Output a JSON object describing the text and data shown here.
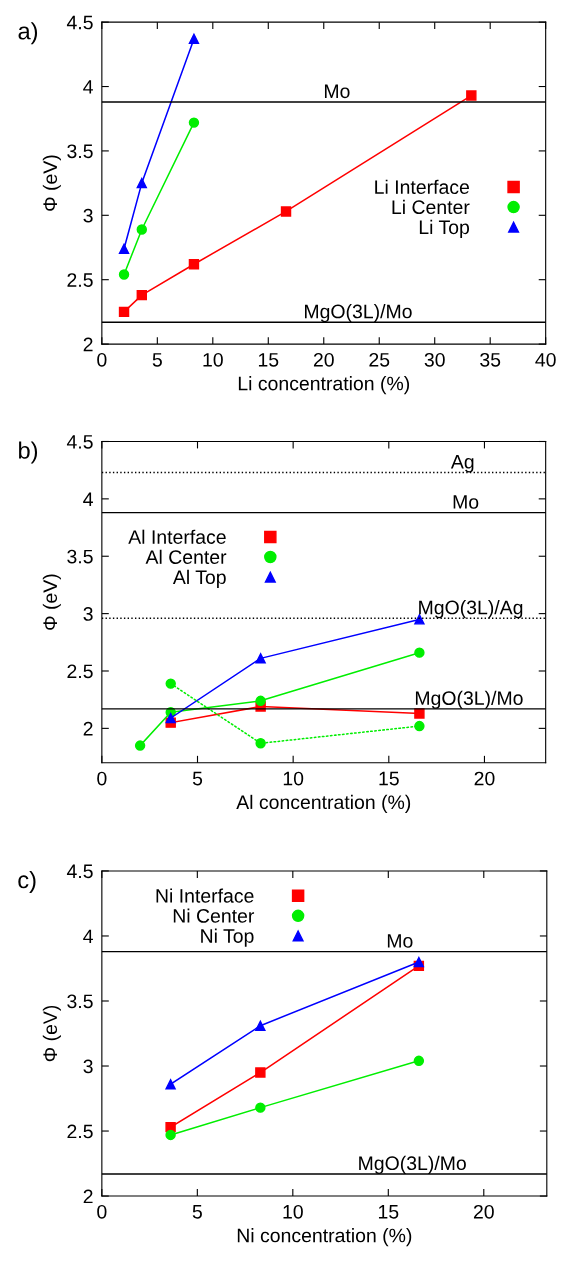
{
  "chart_data": [
    {
      "type": "line",
      "title": "a)",
      "xlabel": "Li concentration (%)",
      "ylabel": "Φ (eV)",
      "xlim": [
        0,
        40
      ],
      "xticks": [
        0,
        5,
        10,
        15,
        20,
        25,
        30,
        35,
        40
      ],
      "ylim": [
        2,
        4.5
      ],
      "yticks": [
        2,
        2.5,
        3,
        3.5,
        4,
        4.5
      ],
      "grid": false,
      "legend": "right",
      "series": [
        {
          "name": "Li Interface",
          "color": "#ff0000",
          "marker": "square",
          "x": [
            2,
            3.6,
            8.3,
            16.6,
            33.3
          ],
          "values": [
            2.25,
            2.38,
            2.62,
            3.03,
            3.93
          ]
        },
        {
          "name": "Li Center",
          "color": "#00ee00",
          "marker": "circle",
          "x": [
            2,
            3.6,
            8.3
          ],
          "values": [
            2.54,
            2.89,
            3.72
          ]
        },
        {
          "name": "Li Top",
          "color": "#0000ff",
          "marker": "triangle",
          "x": [
            2,
            3.6,
            8.3
          ],
          "values": [
            2.74,
            3.25,
            4.37
          ]
        }
      ],
      "ref_lines": [
        {
          "axis": "y",
          "value": 3.88,
          "label": "Mo",
          "color": "#000000",
          "line_style": "solid"
        },
        {
          "axis": "y",
          "value": 2.17,
          "label": "MgO(3L)/Mo",
          "color": "#000000",
          "line_style": "solid"
        }
      ]
    },
    {
      "type": "line",
      "title": "b)",
      "xlabel": "Al concentration (%)",
      "ylabel": "Φ (eV)",
      "xlim": [
        0,
        23.2
      ],
      "xticks": [
        0,
        5,
        10,
        15,
        20
      ],
      "ylim": [
        1.7,
        4.5
      ],
      "yticks": [
        2,
        2.5,
        3,
        3.5,
        4,
        4.5
      ],
      "grid": false,
      "legend": "top left",
      "series": [
        {
          "name": "Al Interface",
          "color": "#ff0000",
          "marker": "square",
          "x": [
            3.6,
            8.3,
            16.6
          ],
          "values": [
            2.05,
            2.19,
            2.13
          ]
        },
        {
          "name": "Al Center",
          "color": "#00ee00",
          "marker": "circle",
          "x": [
            2,
            3.6,
            8.3,
            16.6
          ],
          "values": [
            1.85,
            2.14,
            2.24,
            2.66
          ]
        },
        {
          "name": "Al Top",
          "color": "#0000ff",
          "marker": "triangle",
          "x": [
            3.6,
            8.3,
            16.6
          ],
          "values": [
            2.09,
            2.61,
            2.95
          ]
        },
        {
          "color": "#00ee00",
          "marker": "circle",
          "line_style": "dotted",
          "x": [
            3.6,
            8.3,
            16.6
          ],
          "values": [
            2.39,
            1.87,
            2.02
          ]
        }
      ],
      "ref_lines": [
        {
          "axis": "y",
          "value": 4.23,
          "label": "Ag",
          "color": "#000000",
          "line_style": "dotted"
        },
        {
          "axis": "y",
          "value": 3.88,
          "label": "Mo",
          "color": "#000000",
          "line_style": "solid"
        },
        {
          "axis": "y",
          "value": 2.96,
          "label": "MgO(3L)/Ag",
          "color": "#000000",
          "line_style": "dotted"
        },
        {
          "axis": "y",
          "value": 2.17,
          "label": "MgO(3L)/Mo",
          "color": "#000000",
          "line_style": "solid"
        }
      ]
    },
    {
      "type": "line",
      "title": "c)",
      "xlabel": "Ni concentration (%)",
      "ylabel": "Φ (eV)",
      "xlim": [
        0,
        23.3
      ],
      "xticks": [
        0,
        5,
        10,
        15,
        20
      ],
      "ylim": [
        2,
        4.5
      ],
      "yticks": [
        2,
        2.5,
        3,
        3.5,
        4,
        4.5
      ],
      "grid": false,
      "legend": "top left",
      "series": [
        {
          "name": "Ni Interface",
          "color": "#ff0000",
          "marker": "square",
          "x": [
            3.6,
            8.3,
            16.6
          ],
          "values": [
            2.53,
            2.95,
            3.77
          ]
        },
        {
          "name": "Ni Center",
          "color": "#00ee00",
          "marker": "circle",
          "x": [
            3.6,
            8.3,
            16.6
          ],
          "values": [
            2.47,
            2.68,
            3.04
          ]
        },
        {
          "name": "Ni Top",
          "color": "#0000ff",
          "marker": "triangle",
          "x": [
            3.6,
            8.3,
            16.6
          ],
          "values": [
            2.86,
            3.31,
            3.8
          ]
        }
      ],
      "ref_lines": [
        {
          "axis": "y",
          "value": 3.88,
          "label": "Mo",
          "color": "#000000",
          "line_style": "solid"
        },
        {
          "axis": "y",
          "value": 2.17,
          "label": "MgO(3L)/Mo",
          "color": "#000000",
          "line_style": "solid"
        }
      ]
    }
  ]
}
